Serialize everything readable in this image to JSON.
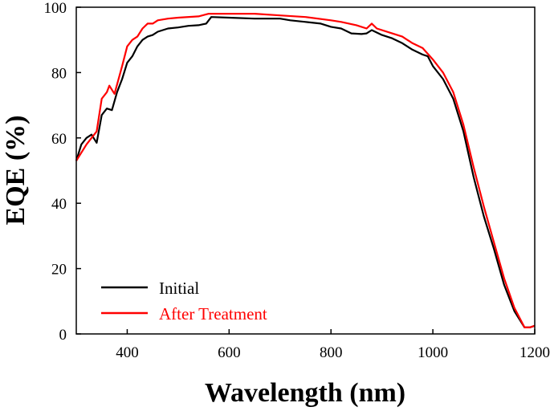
{
  "chart_data": {
    "type": "line",
    "title": "",
    "xlabel": "Wavelength (nm)",
    "ylabel": "EQE (%)",
    "xlim": [
      300,
      1200
    ],
    "ylim": [
      0,
      100
    ],
    "xticks": [
      400,
      600,
      800,
      1000,
      1200
    ],
    "yticks": [
      0,
      20,
      40,
      60,
      80,
      100
    ],
    "grid": false,
    "legend_position": "bottom-left",
    "series": [
      {
        "name": "Initial",
        "color": "#000000",
        "x": [
          300,
          310,
          320,
          330,
          340,
          350,
          360,
          370,
          380,
          390,
          400,
          410,
          420,
          430,
          440,
          450,
          460,
          480,
          500,
          520,
          540,
          555,
          565,
          600,
          650,
          700,
          720,
          750,
          780,
          800,
          820,
          840,
          860,
          870,
          880,
          900,
          920,
          940,
          960,
          980,
          990,
          1000,
          1020,
          1040,
          1060,
          1080,
          1100,
          1120,
          1140,
          1160,
          1180,
          1190,
          1200
        ],
        "y": [
          53,
          58,
          60,
          61,
          58.5,
          67,
          69,
          68.5,
          74,
          78,
          83,
          85,
          88,
          90,
          91,
          91.5,
          92.5,
          93.5,
          93.8,
          94.3,
          94.5,
          95,
          97,
          96.8,
          96.5,
          96.5,
          96,
          95.5,
          95,
          94,
          93.5,
          92,
          91.8,
          92,
          93,
          91.5,
          90.5,
          89,
          87,
          85.5,
          85,
          82,
          78,
          72,
          62,
          48,
          36,
          26,
          15,
          7,
          2,
          2,
          2.5
        ]
      },
      {
        "name": "After Treatment",
        "color": "#ff0000",
        "x": [
          300,
          320,
          340,
          350,
          360,
          365,
          375,
          390,
          400,
          410,
          420,
          430,
          440,
          450,
          460,
          480,
          500,
          540,
          560,
          600,
          650,
          700,
          750,
          800,
          820,
          850,
          870,
          880,
          890,
          920,
          940,
          960,
          980,
          1000,
          1020,
          1040,
          1060,
          1080,
          1100,
          1120,
          1140,
          1160,
          1180,
          1190,
          1200
        ],
        "y": [
          53,
          58,
          62,
          72,
          74,
          76,
          73.5,
          82,
          88,
          90,
          91,
          93.5,
          95,
          95,
          96,
          96.5,
          96.8,
          97.2,
          98,
          98,
          98,
          97.5,
          97,
          96,
          95.5,
          94.5,
          93.5,
          95,
          93.5,
          92,
          91,
          89,
          87.5,
          84,
          80,
          74,
          64,
          51,
          39,
          28,
          17,
          8,
          2,
          2,
          2.5
        ]
      }
    ]
  }
}
